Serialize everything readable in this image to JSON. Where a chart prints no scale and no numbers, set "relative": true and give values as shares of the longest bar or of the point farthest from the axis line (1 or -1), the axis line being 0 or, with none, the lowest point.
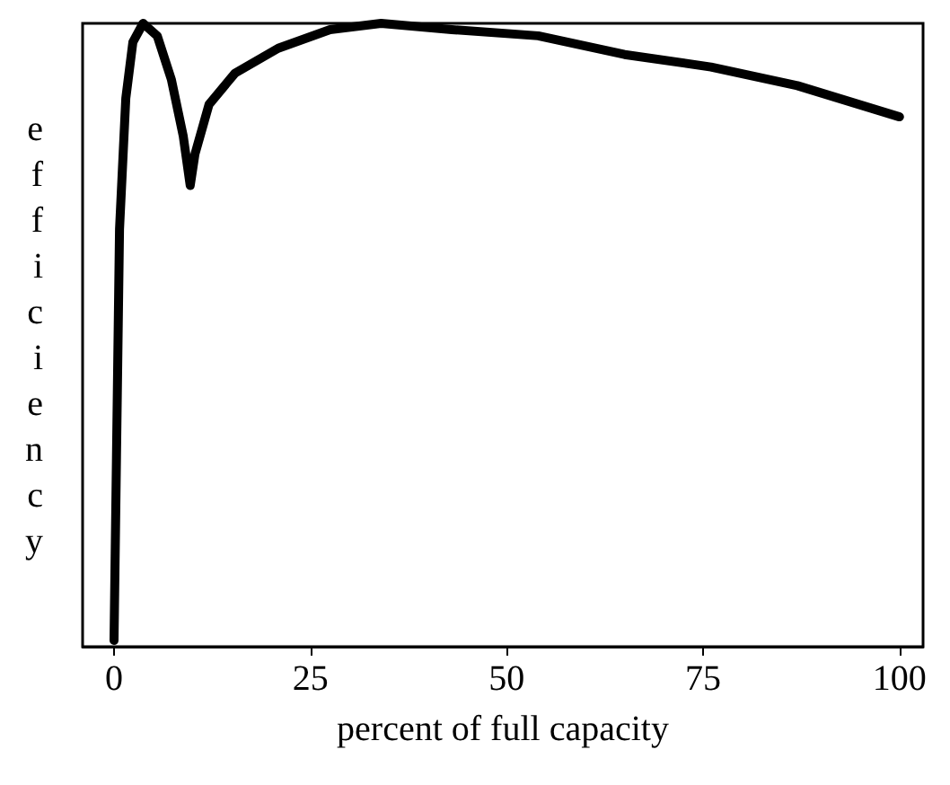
{
  "chart_data": {
    "type": "line",
    "xlabel": "percent of full capacity",
    "ylabel": "efficiency",
    "relative": true,
    "xlim": [
      -4,
      103
    ],
    "xticks": [
      0,
      25,
      50,
      75,
      100
    ],
    "grid": false,
    "marker": "none",
    "line_style": "solid",
    "series": [
      {
        "color": "#000000",
        "x": [
          0,
          0.7,
          1.5,
          2.4,
          3.7,
          5.5,
          7.3,
          8.8,
          9.7,
          10.3,
          12.1,
          15.4,
          20.9,
          27.5,
          34,
          43,
          54,
          65,
          76,
          87,
          100
        ],
        "values": [
          0.01,
          0.67,
          0.88,
          0.97,
          1.0,
          0.98,
          0.91,
          0.82,
          0.74,
          0.79,
          0.87,
          0.92,
          0.96,
          0.99,
          1.0,
          0.99,
          0.98,
          0.95,
          0.93,
          0.9,
          0.85
        ]
      }
    ]
  }
}
